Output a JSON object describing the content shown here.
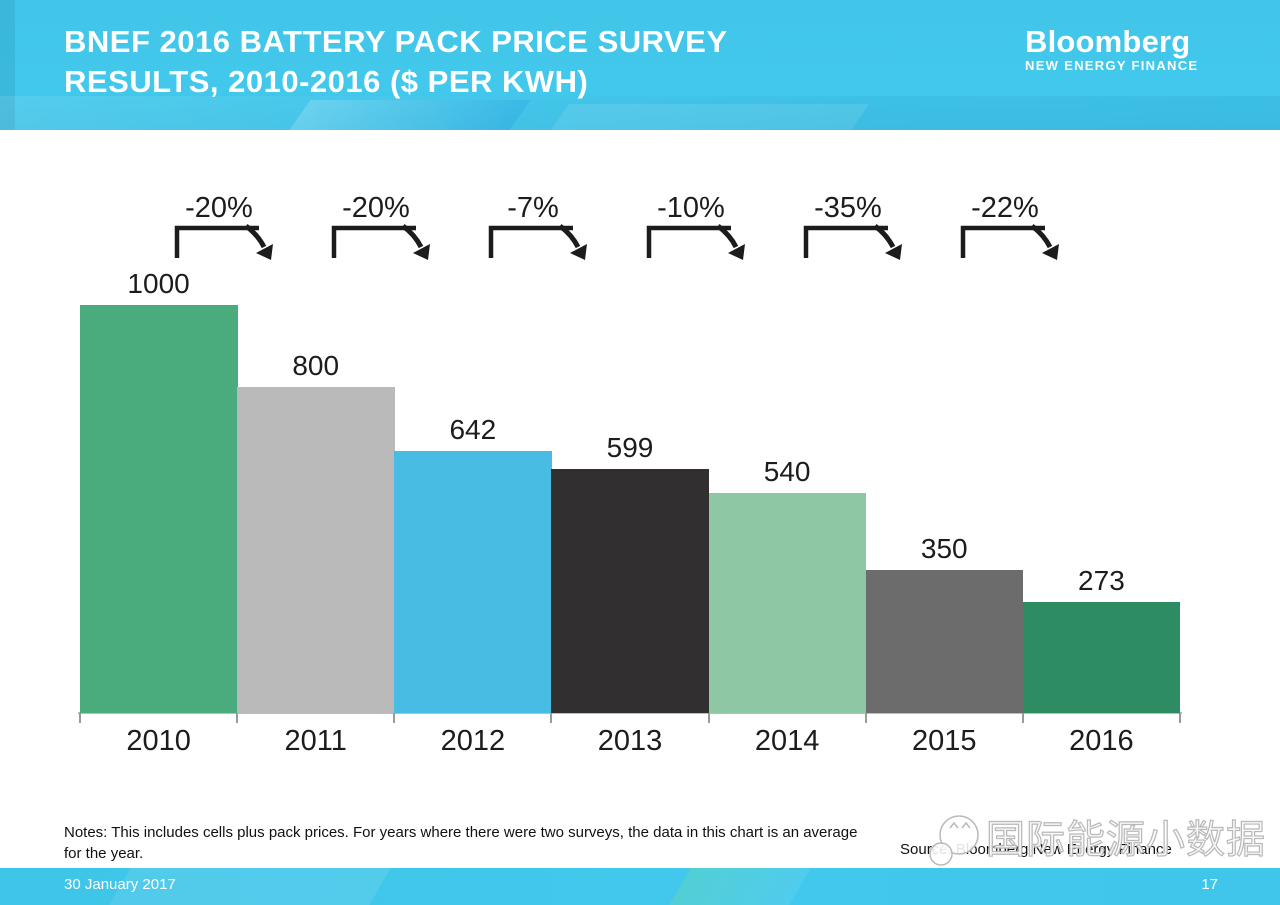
{
  "header": {
    "title_lines": [
      "BNEF 2016 BATTERY PACK PRICE SURVEY",
      "RESULTS, 2010-2016 ($ PER KWH)"
    ],
    "logo": {
      "primary": "Bloomberg",
      "secondary": "NEW ENERGY FINANCE"
    }
  },
  "chart_data": {
    "type": "bar",
    "title": "BNEF 2016 battery pack price survey results, 2010-2016 ($ per kWh)",
    "categories": [
      "2010",
      "2011",
      "2012",
      "2013",
      "2014",
      "2015",
      "2016"
    ],
    "values": [
      1000,
      800,
      642,
      599,
      540,
      350,
      273
    ],
    "bar_colors": [
      "#4aab7c",
      "#bababa",
      "#49bce4",
      "#312f30",
      "#8ec7a3",
      "#6c6c6c",
      "#2e8c62"
    ],
    "annotations": [
      "-20%",
      "-20%",
      "-7%",
      "-10%",
      "-35%",
      "-22%"
    ],
    "xlabel": "",
    "ylabel": "$ per kWh",
    "ylim": [
      0,
      1000
    ],
    "grid": false,
    "legend": false,
    "data_labels": true
  },
  "notes": "Notes: This includes cells plus pack prices. For years where there were two surveys, the data in this chart is an average for the year.",
  "source": "Source: Bloomberg New Energy Finance",
  "watermark": {
    "text": "国际能源小数据"
  },
  "footer": {
    "date": "30 January 2017",
    "page": "17"
  },
  "colors": {
    "header_bg": "#42c8ea",
    "footer_bg": "#40c6e9",
    "axis": "#bdbdbd",
    "text": "#1c1c1c",
    "title_text": "#ffffff"
  }
}
